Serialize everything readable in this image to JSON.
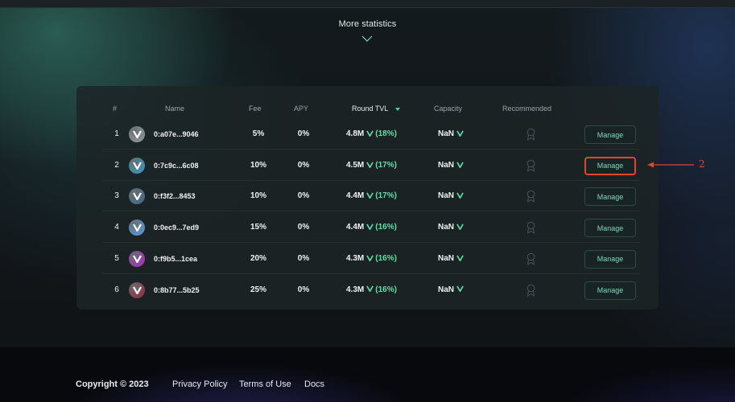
{
  "header": {
    "more_statistics": "More statistics"
  },
  "table": {
    "columns": {
      "rank": "#",
      "name": "Name",
      "fee": "Fee",
      "apy": "APY",
      "tvl": "Round TVL",
      "capacity": "Capacity",
      "recommended": "Recommended"
    },
    "rows": [
      {
        "rank": "1",
        "name": "0:a07e...9046",
        "fee": "5%",
        "apy": "0%",
        "tvl": "4.8M",
        "tvl_pct": "(18%)",
        "capacity": "NaN",
        "action": "Manage",
        "avatar_color": "#8a8f96"
      },
      {
        "rank": "2",
        "name": "0:7c9c...6c08",
        "fee": "10%",
        "apy": "0%",
        "tvl": "4.5M",
        "tvl_pct": "(17%)",
        "capacity": "NaN",
        "action": "Manage",
        "avatar_color": "#3f8fb0"
      },
      {
        "rank": "3",
        "name": "0:f3f2...8453",
        "fee": "10%",
        "apy": "0%",
        "tvl": "4.4M",
        "tvl_pct": "(17%)",
        "capacity": "NaN",
        "action": "Manage",
        "avatar_color": "#4c6a86"
      },
      {
        "rank": "4",
        "name": "0:0ec9...7ed9",
        "fee": "15%",
        "apy": "0%",
        "tvl": "4.4M",
        "tvl_pct": "(16%)",
        "capacity": "NaN",
        "action": "Manage",
        "avatar_color": "#5d8fc8"
      },
      {
        "rank": "5",
        "name": "0:f9b5...1cea",
        "fee": "20%",
        "apy": "0%",
        "tvl": "4.3M",
        "tvl_pct": "(16%)",
        "capacity": "NaN",
        "action": "Manage",
        "avatar_color": "#9a3db0"
      },
      {
        "rank": "6",
        "name": "0:8b77...5b25",
        "fee": "25%",
        "apy": "0%",
        "tvl": "4.3M",
        "tvl_pct": "(16%)",
        "capacity": "NaN",
        "action": "Manage",
        "avatar_color": "#8a3a4a"
      }
    ]
  },
  "annotation": {
    "label": "2"
  },
  "footer": {
    "copyright": "Copyright © 2023",
    "privacy": "Privacy Policy",
    "terms": "Terms of Use",
    "docs": "Docs"
  },
  "colors": {
    "accent_green": "#5fe0a4",
    "highlight_red": "#e0462a",
    "card_bg": "#1c2426"
  }
}
